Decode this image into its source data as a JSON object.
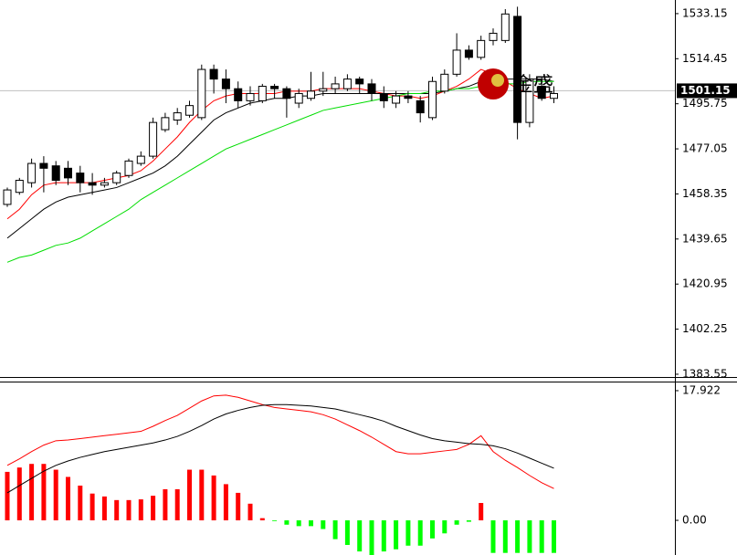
{
  "chart_data": [
    {
      "type": "candlestick",
      "open": [
        1454,
        1459,
        1463,
        1471,
        1470,
        1469,
        1467,
        1463,
        1462,
        1463,
        1466,
        1471,
        1474,
        1485,
        1489,
        1491,
        1490,
        1510,
        1506,
        1502,
        1497,
        1497,
        1503,
        1502,
        1496,
        1498,
        1501,
        1502,
        1502,
        1506,
        1504,
        1500,
        1496,
        1499,
        1497,
        1490,
        1501,
        1508,
        1518,
        1515,
        1522,
        1522,
        1532,
        1488,
        1503,
        1498
      ],
      "high": [
        1461,
        1465,
        1473,
        1474,
        1472,
        1472,
        1470,
        1467,
        1465,
        1468,
        1473,
        1476,
        1490,
        1492,
        1494,
        1497,
        1512,
        1512,
        1510,
        1505,
        1503,
        1504,
        1504,
        1503,
        1502,
        1509,
        1509,
        1507,
        1508,
        1507,
        1506,
        1503,
        1501,
        1501,
        1499,
        1507,
        1510,
        1525,
        1520,
        1524,
        1527,
        1535,
        1536,
        1508,
        1507,
        1503
      ],
      "low": [
        1453,
        1458,
        1461,
        1459,
        1462,
        1462,
        1459,
        1458,
        1461,
        1462,
        1465,
        1470,
        1473,
        1484,
        1487,
        1490,
        1489,
        1500,
        1496,
        1494,
        1495,
        1496,
        1498,
        1490,
        1494,
        1497,
        1499,
        1500,
        1501,
        1500,
        1497,
        1494,
        1494,
        1496,
        1488,
        1489,
        1500,
        1507,
        1514,
        1514,
        1520,
        1521,
        1481,
        1486,
        1497,
        1496
      ],
      "close": [
        1460,
        1464,
        1471,
        1469,
        1464,
        1465,
        1463,
        1462,
        1463,
        1467,
        1472,
        1474,
        1488,
        1490,
        1492,
        1495,
        1510,
        1506,
        1502,
        1497,
        1500,
        1503,
        1502,
        1498,
        1500,
        1501,
        1502,
        1504,
        1506,
        1504,
        1500,
        1497,
        1499,
        1498,
        1492,
        1505,
        1508,
        1518,
        1515,
        1522,
        1525,
        1533,
        1488,
        1506,
        1498,
        1500
      ],
      "up_color": "#ffffff",
      "down_color": "#000000",
      "series": [
        {
          "color": "#ff0000",
          "values": [
            1448,
            1452,
            1458,
            1462,
            1463,
            1463,
            1463,
            1463,
            1464,
            1465,
            1466,
            1468,
            1472,
            1477,
            1482,
            1488,
            1493,
            1497,
            1499,
            1500,
            1500,
            1500,
            1500,
            1501,
            1501,
            1501,
            1502,
            1502,
            1502,
            1502,
            1501,
            1500,
            1499,
            1499,
            1498,
            1499,
            1501,
            1503,
            1506,
            1510,
            1508,
            1505,
            1502,
            1500,
            1498,
            1499
          ]
        },
        {
          "color": "#000000",
          "values": [
            1440,
            1444,
            1448,
            1452,
            1455,
            1457,
            1458,
            1459,
            1460,
            1461,
            1463,
            1465,
            1467,
            1470,
            1474,
            1479,
            1484,
            1489,
            1492,
            1494,
            1496,
            1497,
            1498,
            1498,
            1499,
            1499,
            1500,
            1500,
            1500,
            1500,
            1500,
            1500,
            1500,
            1500,
            1500,
            1500,
            1501,
            1502,
            1503,
            1505,
            1506,
            1506,
            1506,
            1506,
            1506,
            1505
          ]
        },
        {
          "color": "#00dd00",
          "values": [
            1430,
            1432,
            1433,
            1435,
            1437,
            1438,
            1440,
            1443,
            1446,
            1449,
            1452,
            1456,
            1459,
            1462,
            1465,
            1468,
            1471,
            1474,
            1477,
            1479,
            1481,
            1483,
            1485,
            1487,
            1489,
            1491,
            1493,
            1494,
            1495,
            1496,
            1497,
            1498,
            1499,
            1500,
            1500,
            1501,
            1501,
            1502,
            1502,
            1503,
            1503,
            1504,
            1504,
            1505,
            1505,
            1505
          ]
        }
      ],
      "last_price": 1501.15,
      "watermark": "金盛",
      "ylim": [
        1382.4,
        1538.8
      ],
      "yticks": [
        1533.15,
        1514.45,
        1495.75,
        1477.05,
        1458.35,
        1439.65,
        1420.95,
        1402.25,
        1383.55
      ]
    },
    {
      "type": "macd",
      "values": [
        6.7,
        7.3,
        7.8,
        7.8,
        7.0,
        6.0,
        4.8,
        3.7,
        3.3,
        2.8,
        2.8,
        2.9,
        3.4,
        4.3,
        4.3,
        7.0,
        7.0,
        6.2,
        5.0,
        3.8,
        2.3,
        0.3,
        -0.1,
        -0.6,
        -0.8,
        -0.8,
        -1.2,
        -2.6,
        -3.4,
        -4.3,
        -4.8,
        -4.3,
        -4.0,
        -3.5,
        -3.5,
        -2.5,
        -1.8,
        -0.6,
        -0.2,
        2.4,
        -4.5,
        -4.5,
        -4.5,
        -4.5,
        -4.5,
        -4.5
      ],
      "up_color": "#ff0000",
      "down_color": "#00ff00",
      "series": [
        {
          "color": "#ff0000",
          "values": [
            7.6,
            8.5,
            9.5,
            10.4,
            11.0,
            11.1,
            11.3,
            11.5,
            11.7,
            11.9,
            12.1,
            12.3,
            13.0,
            13.8,
            14.5,
            15.5,
            16.5,
            17.2,
            17.3,
            17.0,
            16.5,
            16.0,
            15.6,
            15.4,
            15.2,
            15.0,
            14.6,
            14.0,
            13.2,
            12.4,
            11.5,
            10.5,
            9.5,
            9.2,
            9.2,
            9.4,
            9.6,
            9.8,
            10.5,
            11.7,
            9.5,
            8.3,
            7.3,
            6.2,
            5.2,
            4.4
          ]
        },
        {
          "color": "#000000",
          "values": [
            3.8,
            4.8,
            5.8,
            6.8,
            7.6,
            8.2,
            8.7,
            9.1,
            9.5,
            9.8,
            10.1,
            10.4,
            10.7,
            11.1,
            11.6,
            12.3,
            13.1,
            14.0,
            14.7,
            15.2,
            15.6,
            15.9,
            16.0,
            16.0,
            15.9,
            15.8,
            15.6,
            15.4,
            15.0,
            14.6,
            14.2,
            13.7,
            13.0,
            12.4,
            11.8,
            11.3,
            11.0,
            10.8,
            10.6,
            10.5,
            10.3,
            9.9,
            9.3,
            8.6,
            7.9,
            7.2
          ]
        }
      ],
      "ylim": [
        -4.79,
        19.18
      ],
      "yticks": [
        17.922,
        {
          "value": 0,
          "label": "0.00"
        }
      ]
    }
  ]
}
